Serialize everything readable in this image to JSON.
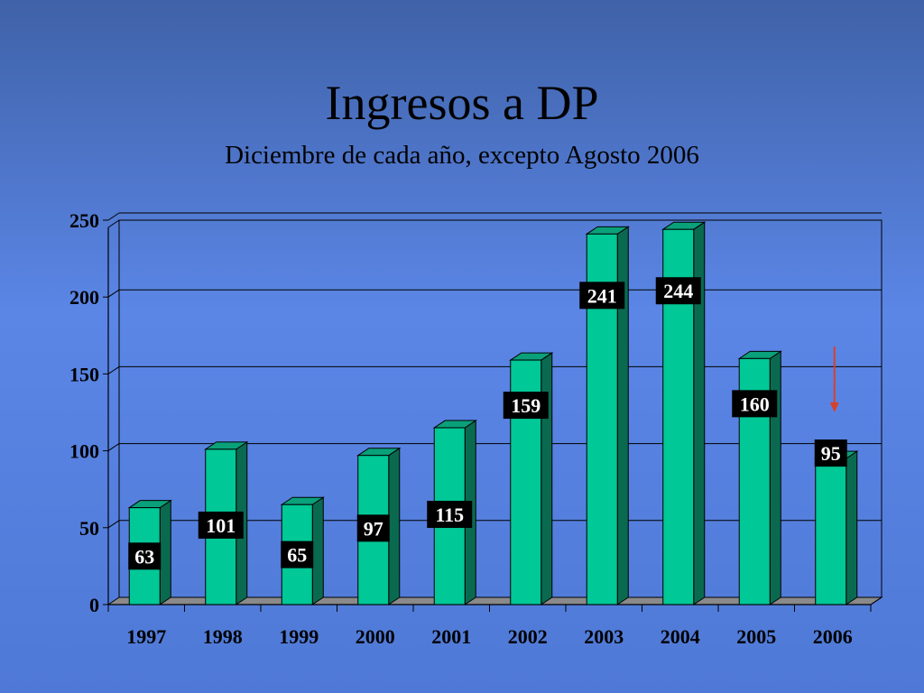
{
  "header": {
    "title": "Ingresos a DP",
    "subtitle": "Diciembre de cada año, excepto Agosto 2006"
  },
  "colors": {
    "bar_front": "#00c896",
    "bar_top": "#0aa07a",
    "bar_side": "#0a6a50",
    "floor": "#8a8a8a",
    "arrow": "#d8402a",
    "label_box": "#000000",
    "label_text": "#ffffff"
  },
  "annotation": {
    "arrow_target": "2006"
  },
  "chart_data": {
    "type": "bar",
    "title": "Ingresos a DP",
    "subtitle": "Diciembre de cada año, excepto Agosto 2006",
    "categories": [
      "1997",
      "1998",
      "1999",
      "2000",
      "2001",
      "2002",
      "2003",
      "2004",
      "2005",
      "2006"
    ],
    "values": [
      63,
      101,
      65,
      97,
      115,
      159,
      241,
      244,
      160,
      95
    ],
    "xlabel": "",
    "ylabel": "",
    "ylim": [
      0,
      250
    ],
    "yticks": [
      0,
      50,
      100,
      150,
      200,
      250
    ],
    "grid": true,
    "legend": "none",
    "style": "3d"
  }
}
